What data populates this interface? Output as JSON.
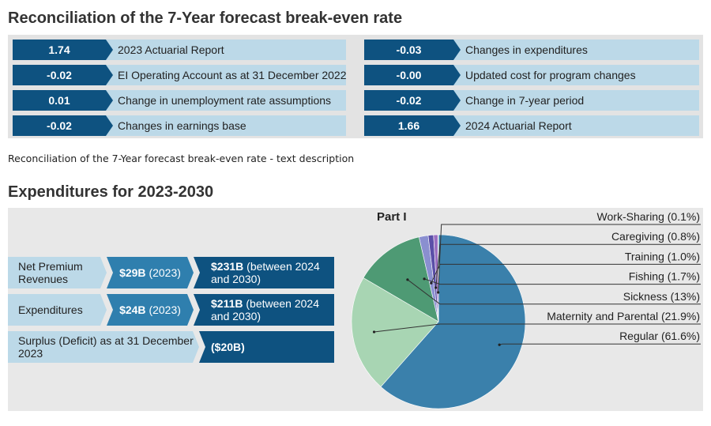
{
  "recon": {
    "title": "Reconciliation of the 7-Year forecast break-even rate",
    "left": [
      {
        "value": "1.74",
        "label": "2023 Actuarial Report"
      },
      {
        "value": "-0.02",
        "label": "EI Operating Account as at 31 December 2022"
      },
      {
        "value": "0.01",
        "label": "Change in unemployment rate assumptions"
      },
      {
        "value": "-0.02",
        "label": "Changes in earnings base"
      }
    ],
    "right": [
      {
        "value": "-0.03",
        "label": "Changes in expenditures"
      },
      {
        "value": "-0.00",
        "label": "Updated cost for program changes"
      },
      {
        "value": "-0.02",
        "label": "Change in 7-year period"
      },
      {
        "value": "1.66",
        "label": "2024 Actuarial Report"
      }
    ],
    "description_link": "Reconciliation of the 7-Year forecast break-even rate - text description"
  },
  "expenditures": {
    "title": "Expenditures for 2023-2030",
    "rows": [
      {
        "label": "Net Premium Revenues",
        "amount_2023": "$29B",
        "year_2023": "(2023)",
        "amount_future": "$231B",
        "future_note": "(between 2024 and 2030)"
      },
      {
        "label": "Expenditures",
        "amount_2023": "$24B",
        "year_2023": "(2023)",
        "amount_future": "$211B",
        "future_note": "(between 2024 and 2030)"
      }
    ],
    "surplus": {
      "label": "Surplus (Deficit) as at 31 December 2023",
      "value": "($20B)"
    }
  },
  "chart_data": {
    "type": "pie",
    "title": "Part I",
    "categories": [
      "Regular",
      "Maternity and Parental",
      "Sickness",
      "Fishing",
      "Training",
      "Caregiving",
      "Work-Sharing"
    ],
    "labels": [
      "Regular (61.6%)",
      "Maternity and Parental (21.9%)",
      "Sickness (13%)",
      "Fishing (1.7%)",
      "Training (1.0%)",
      "Caregiving (0.8%)",
      "Work-Sharing (0.1%)"
    ],
    "values": [
      61.6,
      21.9,
      13.0,
      1.7,
      1.0,
      0.8,
      0.1
    ],
    "colors": [
      "#3a80ab",
      "#a8d5b3",
      "#4e9a74",
      "#8a8fd0",
      "#5b4fa8",
      "#9a6fc1",
      "#c8a0d8"
    ]
  }
}
